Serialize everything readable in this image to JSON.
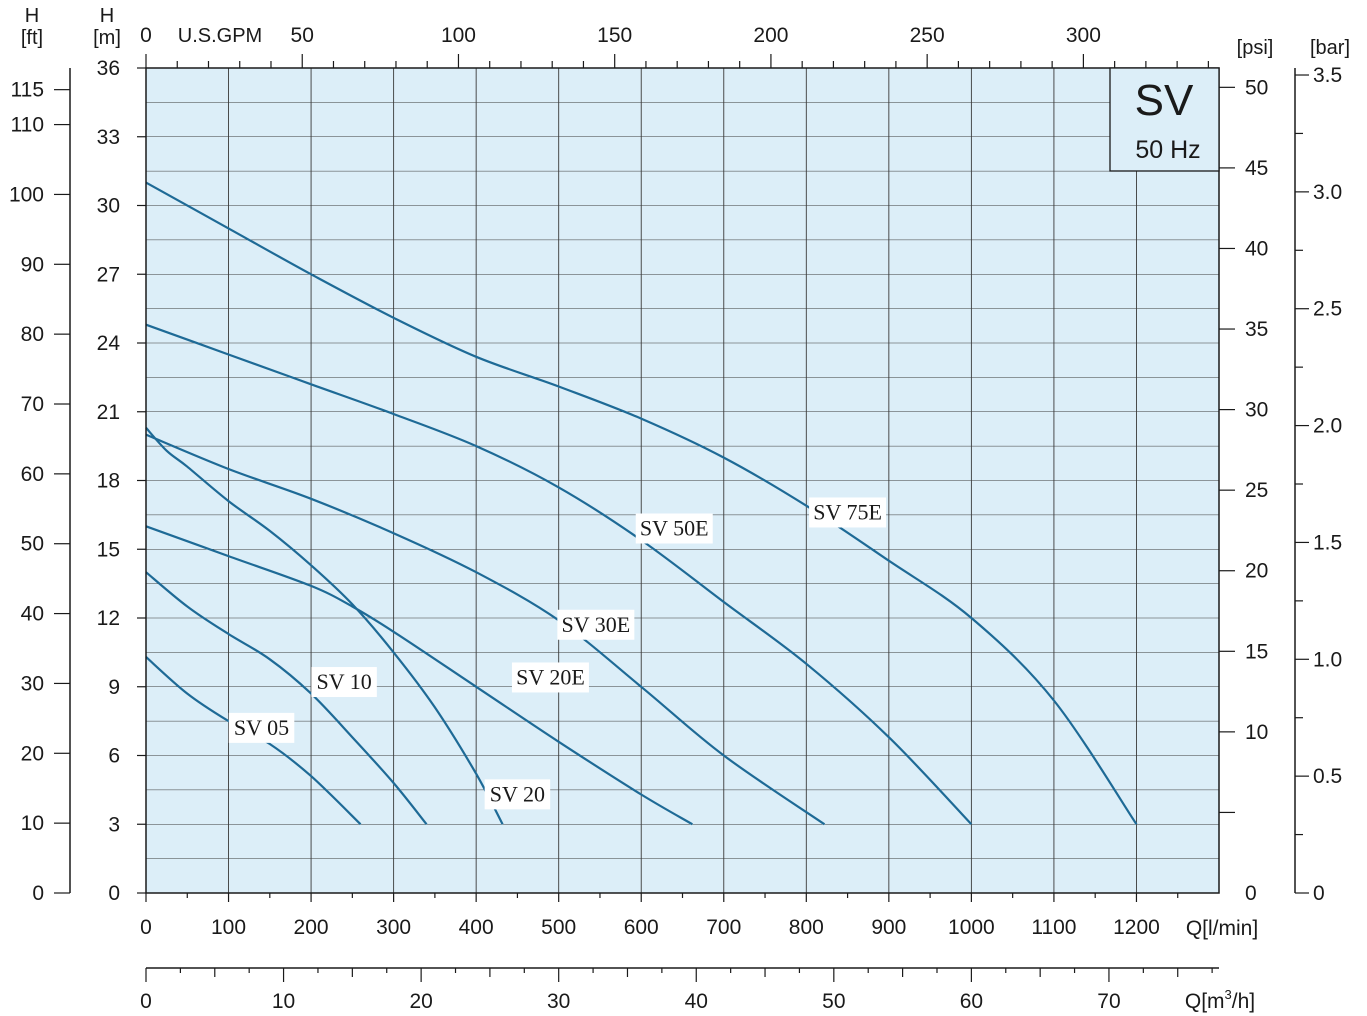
{
  "chart_data": {
    "type": "line",
    "title": "SV",
    "subtitle": "50 Hz",
    "colors": {
      "plot_bg": "#dceef8",
      "curve": "#1e6a96"
    },
    "axes": {
      "x_lmin": {
        "label": "Q[l/min]",
        "range": [
          0,
          1300
        ],
        "ticks": [
          "0",
          "100",
          "200",
          "300",
          "400",
          "500",
          "600",
          "700",
          "800",
          "900",
          "1000",
          "1100",
          "1200"
        ]
      },
      "x_m3h": {
        "label": "Q[m³/h]",
        "label_main": "Q[m",
        "label_sup": "3",
        "label_tail": "/h]",
        "range": [
          0,
          78
        ],
        "ticks": [
          "0",
          "10",
          "20",
          "30",
          "40",
          "50",
          "60",
          "70"
        ]
      },
      "x_gpm": {
        "label": "U.S.GPM",
        "range": [
          0,
          343.4
        ],
        "ticks": [
          "0",
          "50",
          "100",
          "150",
          "200",
          "250",
          "300"
        ]
      },
      "y_m": {
        "label_top": "H",
        "label_unit": "[m]",
        "range": [
          0,
          36
        ],
        "ticks": [
          "0",
          "3",
          "6",
          "9",
          "12",
          "15",
          "18",
          "21",
          "24",
          "27",
          "30",
          "33",
          "36"
        ]
      },
      "y_ft": {
        "label_top": "H",
        "label_unit": "[ft]",
        "range": [
          0,
          118.1
        ],
        "ticks": [
          "0",
          "10",
          "20",
          "30",
          "40",
          "50",
          "60",
          "70",
          "80",
          "90",
          "100",
          "110",
          "115"
        ]
      },
      "y_psi": {
        "label": "[psi]",
        "range": [
          0,
          51.2
        ],
        "ticks": [
          "0",
          "10",
          "15",
          "20",
          "25",
          "30",
          "35",
          "40",
          "45",
          "50"
        ]
      },
      "y_bar": {
        "label": "[bar]",
        "range": [
          0,
          3.53
        ],
        "ticks": [
          "0",
          "0.5",
          "1.0",
          "1.5",
          "2.0",
          "2.5",
          "3.0",
          "3.5"
        ]
      }
    },
    "grid": true,
    "series": [
      {
        "name": "SV 05",
        "x": [
          0,
          50,
          100,
          150,
          200,
          260
        ],
        "y": [
          10.3,
          8.7,
          7.5,
          6.5,
          5.1,
          3
        ]
      },
      {
        "name": "SV 10",
        "x": [
          0,
          50,
          100,
          150,
          200,
          250,
          300,
          340
        ],
        "y": [
          14,
          12.5,
          11.3,
          10.2,
          8.7,
          6.8,
          4.8,
          3
        ]
      },
      {
        "name": "SV 20",
        "x": [
          0,
          25,
          50,
          100,
          150,
          200,
          250,
          300,
          350,
          400,
          432
        ],
        "y": [
          20.3,
          19.3,
          18.6,
          17.1,
          15.8,
          14.3,
          12.6,
          10.5,
          8.1,
          5.2,
          3
        ]
      },
      {
        "name": "SV 20E",
        "x": [
          0,
          100,
          200,
          250,
          300,
          400,
          500,
          600,
          662
        ],
        "y": [
          16,
          14.7,
          13.4,
          12.5,
          11.4,
          9.0,
          6.6,
          4.3,
          3
        ]
      },
      {
        "name": "SV 30E",
        "x": [
          0,
          100,
          200,
          300,
          400,
          500,
          600,
          700,
          822
        ],
        "y": [
          20,
          18.5,
          17.2,
          15.7,
          14.0,
          11.9,
          9.0,
          6.0,
          3
        ]
      },
      {
        "name": "SV 50E",
        "x": [
          0,
          100,
          200,
          300,
          400,
          500,
          600,
          700,
          800,
          900,
          1000
        ],
        "y": [
          24.8,
          23.5,
          22.2,
          20.9,
          19.5,
          17.7,
          15.4,
          12.7,
          10.0,
          6.8,
          3
        ]
      },
      {
        "name": "SV 75E",
        "x": [
          0,
          100,
          200,
          300,
          400,
          500,
          600,
          700,
          800,
          900,
          1000,
          1100,
          1200
        ],
        "y": [
          31,
          29,
          27,
          25.1,
          23.4,
          22.1,
          20.7,
          19.0,
          16.9,
          14.5,
          12.0,
          8.4,
          3
        ]
      }
    ],
    "labels": [
      {
        "text": "SV 05",
        "series": "SV 05"
      },
      {
        "text": "SV 10",
        "series": "SV 10"
      },
      {
        "text": "SV 20",
        "series": "SV 20"
      },
      {
        "text": "SV 20E",
        "series": "SV 20E"
      },
      {
        "text": "SV 30E",
        "series": "SV 30E"
      },
      {
        "text": "SV 50E",
        "series": "SV 50E"
      },
      {
        "text": "SV 75E",
        "series": "SV 75E"
      }
    ]
  }
}
